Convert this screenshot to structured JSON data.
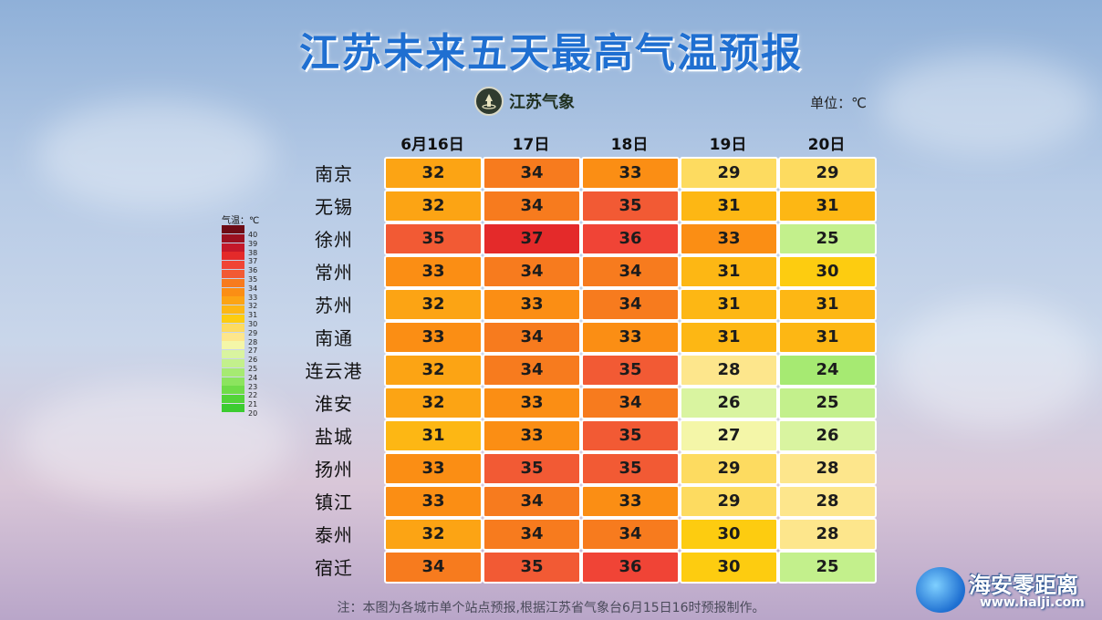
{
  "title": "江苏未来五天最高气温预报",
  "logo_text": "江苏气象",
  "unit_label": "单位：℃",
  "note": "注：本图为各城市单个站点预报,根据江苏省气象台6月15日16时预报制作。",
  "watermark": {
    "name": "海安零距离",
    "url": "www.halji.com"
  },
  "legend": {
    "title": "气温：℃",
    "items": [
      {
        "value": "40",
        "color": "#6e0a14"
      },
      {
        "value": "39",
        "color": "#9b1020"
      },
      {
        "value": "38",
        "color": "#c4182a"
      },
      {
        "value": "37",
        "color": "#e42a2a"
      },
      {
        "value": "36",
        "color": "#f04436"
      },
      {
        "value": "35",
        "color": "#f25a34"
      },
      {
        "value": "34",
        "color": "#f77b1e"
      },
      {
        "value": "33",
        "color": "#fb8e14"
      },
      {
        "value": "32",
        "color": "#fca414"
      },
      {
        "value": "31",
        "color": "#fdb714"
      },
      {
        "value": "30",
        "color": "#fdcc10"
      },
      {
        "value": "29",
        "color": "#fddb60"
      },
      {
        "value": "28",
        "color": "#fde68c"
      },
      {
        "value": "27",
        "color": "#f4f6a8"
      },
      {
        "value": "26",
        "color": "#d9f4a0"
      },
      {
        "value": "25",
        "color": "#c3f08c"
      },
      {
        "value": "24",
        "color": "#a6ea72"
      },
      {
        "value": "23",
        "color": "#8ce45e"
      },
      {
        "value": "22",
        "color": "#6fdc48"
      },
      {
        "value": "21",
        "color": "#52d438"
      },
      {
        "value": "20",
        "color": "#3ccc30"
      }
    ]
  },
  "chart_data": {
    "type": "table",
    "title": "江苏未来五天最高气温预报",
    "unit": "℃",
    "columns": [
      "6月16日",
      "17日",
      "18日",
      "19日",
      "20日"
    ],
    "rows": [
      {
        "city": "南京",
        "values": [
          32,
          34,
          33,
          29,
          29
        ]
      },
      {
        "city": "无锡",
        "values": [
          32,
          34,
          35,
          31,
          31
        ]
      },
      {
        "city": "徐州",
        "values": [
          35,
          37,
          36,
          33,
          25
        ]
      },
      {
        "city": "常州",
        "values": [
          33,
          34,
          34,
          31,
          30
        ]
      },
      {
        "city": "苏州",
        "values": [
          32,
          33,
          34,
          31,
          31
        ]
      },
      {
        "city": "南通",
        "values": [
          33,
          34,
          33,
          31,
          31
        ]
      },
      {
        "city": "连云港",
        "values": [
          32,
          34,
          35,
          28,
          24
        ]
      },
      {
        "city": "淮安",
        "values": [
          32,
          33,
          34,
          26,
          25
        ]
      },
      {
        "city": "盐城",
        "values": [
          31,
          33,
          35,
          27,
          26
        ]
      },
      {
        "city": "扬州",
        "values": [
          33,
          35,
          35,
          29,
          28
        ]
      },
      {
        "city": "镇江",
        "values": [
          33,
          34,
          33,
          29,
          28
        ]
      },
      {
        "city": "泰州",
        "values": [
          32,
          34,
          34,
          30,
          28
        ]
      },
      {
        "city": "宿迁",
        "values": [
          34,
          35,
          36,
          30,
          25
        ]
      }
    ]
  }
}
